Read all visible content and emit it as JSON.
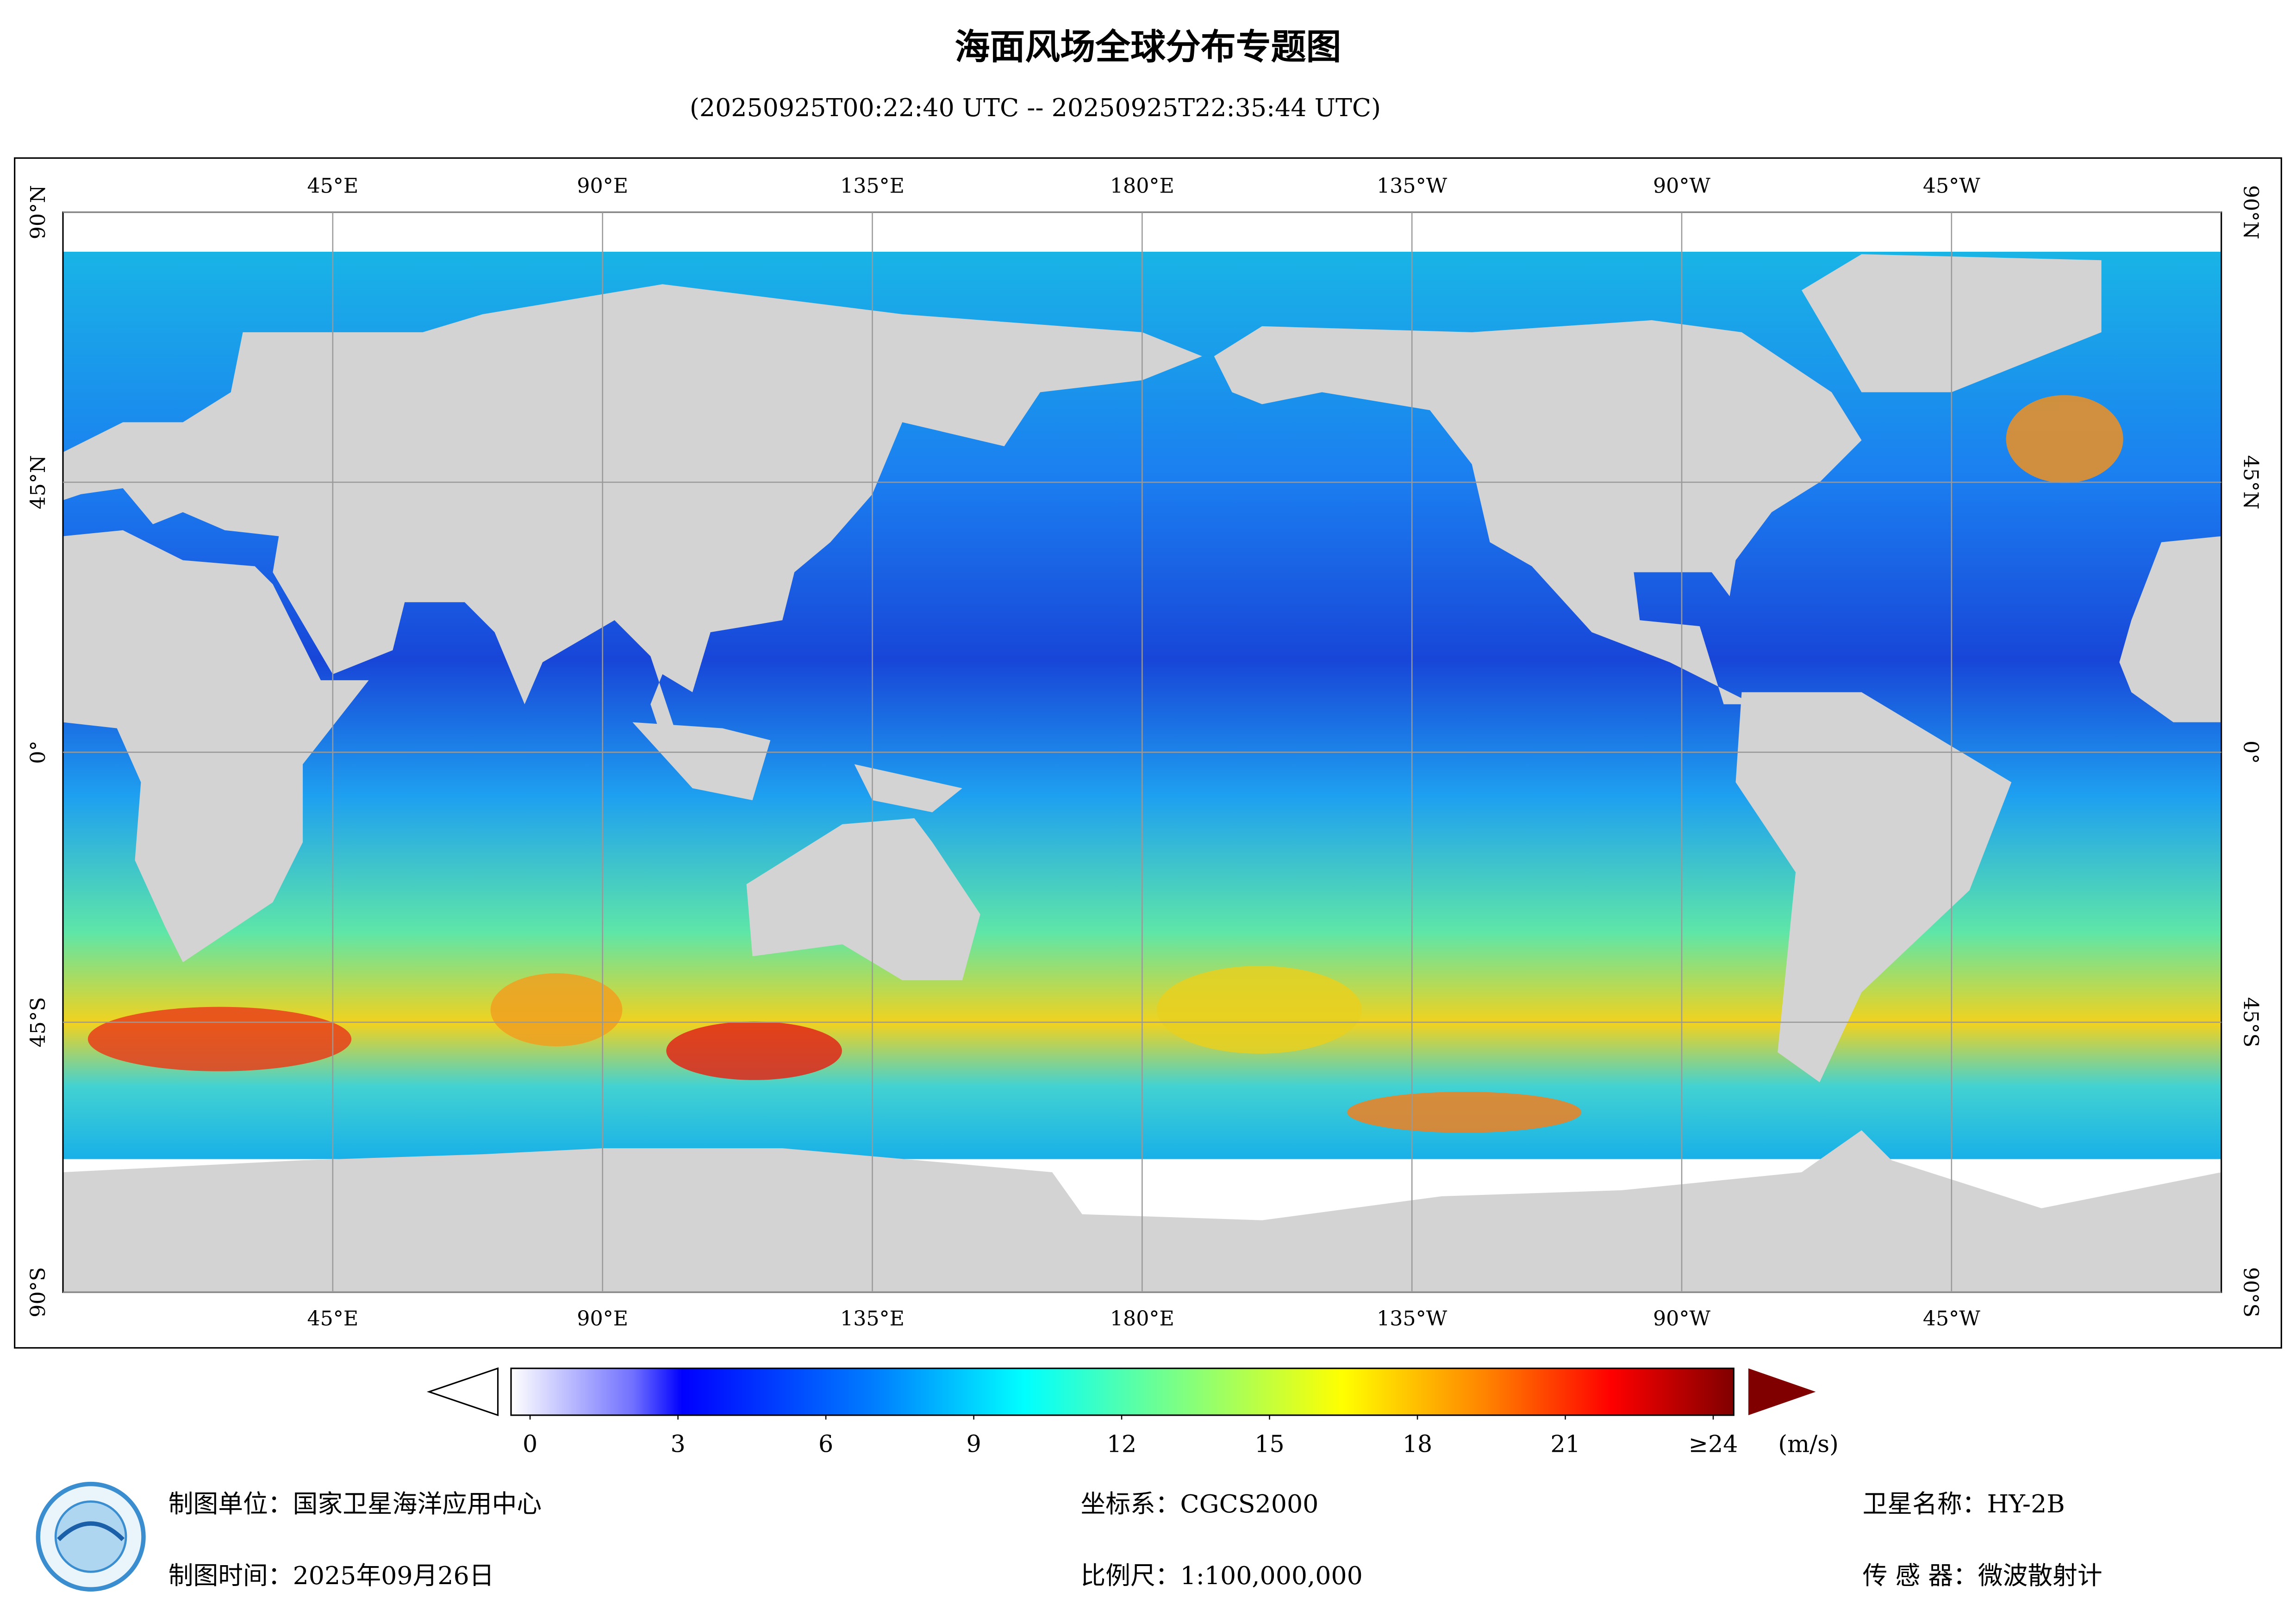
{
  "header": {
    "title": "海面风场全球分布专题图",
    "subtitle": "(20250925T00:22:40 UTC -- 20250925T22:35:44 UTC)"
  },
  "map": {
    "lon_ticks": [
      {
        "value": 45,
        "label": "45°E"
      },
      {
        "value": 90,
        "label": "90°E"
      },
      {
        "value": 135,
        "label": "135°E"
      },
      {
        "value": 180,
        "label": "180°E"
      },
      {
        "value": -135,
        "label": "135°W"
      },
      {
        "value": -90,
        "label": "90°W"
      },
      {
        "value": -45,
        "label": "45°W"
      }
    ],
    "lat_ticks": [
      {
        "value": 90,
        "label": "90°N"
      },
      {
        "value": 45,
        "label": "45°N"
      },
      {
        "value": 0,
        "label": "0°"
      },
      {
        "value": -45,
        "label": "45°S"
      },
      {
        "value": -90,
        "label": "90°S"
      }
    ]
  },
  "colorbar": {
    "ticks": [
      0,
      3,
      6,
      9,
      12,
      15,
      18,
      21,
      {
        "value": 24,
        "label": "≥24"
      }
    ],
    "unit": "(m/s)"
  },
  "footer": {
    "left": [
      "制图单位：国家卫星海洋应用中心",
      "制图时间：2025年09月26日"
    ],
    "middle": [
      "坐标系：CGCS2000",
      "比例尺：1:100,000,000"
    ],
    "right": [
      "卫星名称：HY-2B",
      "传 感 器：微波散射计"
    ]
  }
}
